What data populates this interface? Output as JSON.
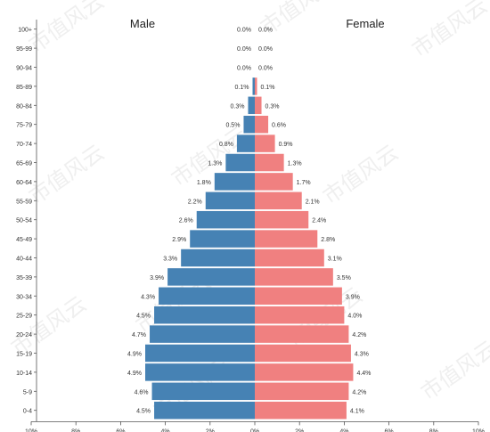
{
  "chart_data": {
    "type": "bar",
    "orientation": "horizontal-butterfly",
    "categories": [
      "100+",
      "95-99",
      "90-94",
      "85-89",
      "80-84",
      "75-79",
      "70-74",
      "65-69",
      "60-64",
      "55-59",
      "50-54",
      "45-49",
      "40-44",
      "35-39",
      "30-34",
      "25-29",
      "20-24",
      "15-19",
      "10-14",
      "5-9",
      "0-4"
    ],
    "series": [
      {
        "name": "Male",
        "color": "#4682b4",
        "values": [
          0.0,
          0.0,
          0.0,
          0.1,
          0.3,
          0.5,
          0.8,
          1.3,
          1.8,
          2.2,
          2.6,
          2.9,
          3.3,
          3.9,
          4.3,
          4.5,
          4.7,
          4.9,
          4.9,
          4.6,
          4.5
        ],
        "labels": [
          "0.0%",
          "0.0%",
          "0.0%",
          "0.1%",
          "0.3%",
          "0.5%",
          "0.8%",
          "1.3%",
          "1.8%",
          "2.2%",
          "2.6%",
          "2.9%",
          "3.3%",
          "3.9%",
          "4.3%",
          "4.5%",
          "4.7%",
          "4.9%",
          "4.9%",
          "4.6%",
          "4.5%"
        ]
      },
      {
        "name": "Female",
        "color": "#f08080",
        "values": [
          0.0,
          0.0,
          0.0,
          0.1,
          0.3,
          0.6,
          0.9,
          1.3,
          1.7,
          2.1,
          2.4,
          2.8,
          3.1,
          3.5,
          3.9,
          4.0,
          4.2,
          4.3,
          4.4,
          4.2,
          4.1
        ],
        "labels": [
          "0.0%",
          "0.0%",
          "0.0%",
          "0.1%",
          "0.3%",
          "0.6%",
          "0.9%",
          "1.3%",
          "1.7%",
          "2.1%",
          "2.4%",
          "2.8%",
          "3.1%",
          "3.5%",
          "3.9%",
          "4.0%",
          "4.2%",
          "4.3%",
          "4.4%",
          "4.2%",
          "4.1%"
        ]
      }
    ],
    "xlim": [
      -10,
      10
    ],
    "x_ticks": [
      -10,
      -8,
      -6,
      -4,
      -2,
      0,
      2,
      4,
      6,
      8,
      10
    ],
    "x_tick_labels": [
      "10%",
      "8%",
      "6%",
      "4%",
      "2%",
      "0%",
      "2%",
      "4%",
      "6%",
      "8%",
      "10%"
    ],
    "grid": false,
    "legend_placement": "top, above each side"
  },
  "watermark_text": "市值风云"
}
